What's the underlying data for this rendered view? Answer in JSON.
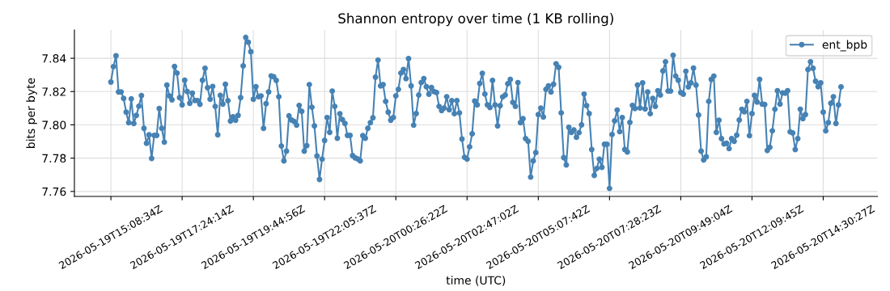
{
  "chart_data": {
    "type": "line",
    "title": "Shannon entropy over time (1 KB rolling)",
    "xlabel": "time (UTC)",
    "ylabel": "bits per byte",
    "categories": [
      "2026-05-19T15:08:34Z",
      null,
      null,
      null,
      null,
      null,
      null,
      null,
      null,
      null,
      null,
      null,
      null,
      null,
      null,
      null,
      null,
      null,
      null,
      null,
      null,
      null,
      null,
      null,
      null,
      null,
      null,
      null,
      "2026-05-19T17:24:14Z",
      null,
      null,
      null,
      null,
      null,
      null,
      null,
      null,
      null,
      null,
      null,
      null,
      null,
      null,
      null,
      null,
      null,
      null,
      null,
      null,
      null,
      null,
      null,
      null,
      null,
      null,
      null,
      "2026-05-19T19:44:56Z",
      null,
      null,
      null,
      null,
      null,
      null,
      null,
      null,
      null,
      null,
      null,
      null,
      null,
      null,
      null,
      null,
      null,
      null,
      null,
      null,
      null,
      null,
      null,
      null,
      null,
      null,
      null,
      "2026-05-19T22:05:37Z",
      null,
      null,
      null,
      null,
      null,
      null,
      null,
      null,
      null,
      null,
      null,
      null,
      null,
      null,
      null,
      null,
      null,
      null,
      null,
      null,
      null,
      null,
      null,
      null,
      null,
      null,
      null,
      "2026-05-20T00:26:22Z",
      null,
      null,
      null,
      null,
      null,
      null,
      null,
      null,
      null,
      null,
      null,
      null,
      null,
      null,
      null,
      null,
      null,
      null,
      null,
      null,
      null,
      null,
      null,
      null,
      null,
      null,
      null,
      "2026-05-20T02:47:02Z",
      null,
      null,
      null,
      null,
      null,
      null,
      null,
      null,
      null,
      null,
      null,
      null,
      null,
      null,
      null,
      null,
      null,
      null,
      null,
      null,
      null,
      null,
      null,
      null,
      null,
      null,
      null,
      "2026-05-20T05:07:42Z",
      null,
      null,
      null,
      null,
      null,
      null,
      null,
      null,
      null,
      null,
      null,
      null,
      null,
      null,
      null,
      null,
      null,
      null,
      null,
      null,
      null,
      null,
      null,
      null,
      null,
      null,
      null,
      "2026-05-20T07:28:23Z",
      null,
      null,
      null,
      null,
      null,
      null,
      null,
      null,
      null,
      null,
      null,
      null,
      null,
      null,
      null,
      null,
      null,
      null,
      null,
      null,
      null,
      null,
      null,
      null,
      null,
      null,
      null,
      "2026-05-20T09:49:04Z",
      null,
      null,
      null,
      null,
      null,
      null,
      null,
      null,
      null,
      null,
      null,
      null,
      null,
      null,
      null,
      null,
      null,
      null,
      null,
      null,
      null,
      null,
      null,
      null,
      null,
      null,
      null,
      "2026-05-20T12:09:45Z",
      null,
      null,
      null,
      null,
      null,
      null,
      null,
      null,
      null,
      null,
      null,
      null,
      null,
      null,
      null,
      null,
      null,
      null,
      null,
      null,
      null,
      null,
      null,
      null,
      null,
      null,
      null,
      "2026-05-20T14:30:27Z",
      null,
      null,
      null,
      null,
      null,
      null,
      null
    ],
    "series": [
      {
        "name": "ent_bpb",
        "color": "#4682b4",
        "values": [
          7.8257,
          7.835,
          7.8415,
          7.8198,
          7.8198,
          7.8159,
          7.8076,
          7.8013,
          7.8156,
          7.8008,
          7.8057,
          7.8112,
          7.8176,
          7.7979,
          7.7889,
          7.794,
          7.7798,
          7.7937,
          7.7937,
          7.8098,
          7.7979,
          7.7896,
          7.8239,
          7.8174,
          7.815,
          7.8351,
          7.8311,
          7.8164,
          7.812,
          7.8268,
          7.82,
          7.813,
          7.819,
          7.8146,
          7.8146,
          7.8124,
          7.8268,
          7.834,
          7.8223,
          7.8154,
          7.8231,
          7.8111,
          7.794,
          7.8177,
          7.8125,
          7.8244,
          7.8145,
          7.8023,
          7.8049,
          7.8028,
          7.8057,
          7.8164,
          7.8354,
          7.8525,
          7.8496,
          7.8439,
          7.8154,
          7.8229,
          7.8169,
          7.8174,
          7.7979,
          7.8127,
          7.8198,
          7.8294,
          7.8289,
          7.8267,
          7.8169,
          7.7873,
          7.7784,
          7.7842,
          7.8054,
          7.8029,
          7.802,
          7.7998,
          7.8117,
          7.8081,
          7.7842,
          7.7875,
          7.8242,
          7.8106,
          7.7994,
          7.7813,
          7.7672,
          7.7794,
          7.7906,
          7.8044,
          7.7955,
          7.8203,
          7.8111,
          7.792,
          7.8067,
          7.8031,
          7.8008,
          7.7937,
          7.7937,
          7.7815,
          7.7802,
          7.7795,
          7.7784,
          7.7935,
          7.792,
          7.7979,
          7.8013,
          7.8042,
          7.8286,
          7.8389,
          7.8234,
          7.8242,
          7.8141,
          7.8076,
          7.8028,
          7.8044,
          7.8174,
          7.8213,
          7.8311,
          7.8333,
          7.8278,
          7.8398,
          7.8234,
          7.7998,
          7.8068,
          7.8179,
          7.8254,
          7.8278,
          7.8229,
          7.8184,
          7.8224,
          7.82,
          7.8194,
          7.8111,
          7.8086,
          7.8101,
          7.8169,
          7.8091,
          7.8145,
          7.8067,
          7.8146,
          7.8072,
          7.7915,
          7.7805,
          7.7794,
          7.7868,
          7.7946,
          7.8143,
          7.812,
          7.8249,
          7.8309,
          7.8185,
          7.812,
          7.8104,
          7.8267,
          7.812,
          7.7994,
          7.8115,
          7.8168,
          7.8179,
          7.8247,
          7.8273,
          7.8135,
          7.8111,
          7.8254,
          7.8013,
          7.8037,
          7.7917,
          7.7901,
          7.7686,
          7.7784,
          7.7833,
          7.8062,
          7.8101,
          7.8047,
          7.8213,
          7.8234,
          7.8197,
          7.8244,
          7.8367,
          7.8346,
          7.8072,
          7.7803,
          7.7759,
          7.7985,
          7.7955,
          7.7969,
          7.7925,
          7.7953,
          7.8,
          7.8185,
          7.8115,
          7.8068,
          7.7852,
          7.7696,
          7.7738,
          7.7794,
          7.7745,
          7.7883,
          7.7883,
          7.7618,
          7.7942,
          7.8024,
          7.8089,
          7.7959,
          7.8044,
          7.7852,
          7.7837,
          7.8015,
          7.8117,
          7.8098,
          7.8239,
          7.8101,
          7.8252,
          7.8096,
          7.8198,
          7.8067,
          7.8159,
          7.8111,
          7.8205,
          7.8179,
          7.8324,
          7.8379,
          7.8203,
          7.8203,
          7.8418,
          7.8293,
          7.8268,
          7.8194,
          7.8184,
          7.8322,
          7.8228,
          7.8252,
          7.8341,
          7.8239,
          7.8059,
          7.7842,
          7.7789,
          7.7808,
          7.8141,
          7.8273,
          7.8293,
          7.7955,
          7.8028,
          7.7917,
          7.7886,
          7.7889,
          7.7857,
          7.7917,
          7.7901,
          7.7938,
          7.8029,
          7.8094,
          7.8078,
          7.8141,
          7.7935,
          7.8068,
          7.8177,
          7.8137,
          7.8273,
          7.8125,
          7.8122,
          7.7846,
          7.7865,
          7.7964,
          7.8094,
          7.8205,
          7.8125,
          7.8192,
          7.819,
          7.8205,
          7.7958,
          7.7951,
          7.7852,
          7.7917,
          7.8094,
          7.8037,
          7.8062,
          7.8332,
          7.8379,
          7.834,
          7.8262,
          7.8229,
          7.8252,
          7.8076,
          7.7964,
          7.8013,
          7.813,
          7.8169,
          7.8008,
          7.812,
          7.8228
        ]
      }
    ],
    "ylim": [
      7.757,
      7.857
    ],
    "yticks": [
      {
        "value": 7.76,
        "label": "7.76"
      },
      {
        "value": 7.78,
        "label": "7.78"
      },
      {
        "value": 7.8,
        "label": "7.80"
      },
      {
        "value": 7.82,
        "label": "7.82"
      },
      {
        "value": 7.84,
        "label": "7.84"
      }
    ],
    "grid": true,
    "legend": "top right",
    "marker": "circle",
    "line_style": "solid"
  }
}
